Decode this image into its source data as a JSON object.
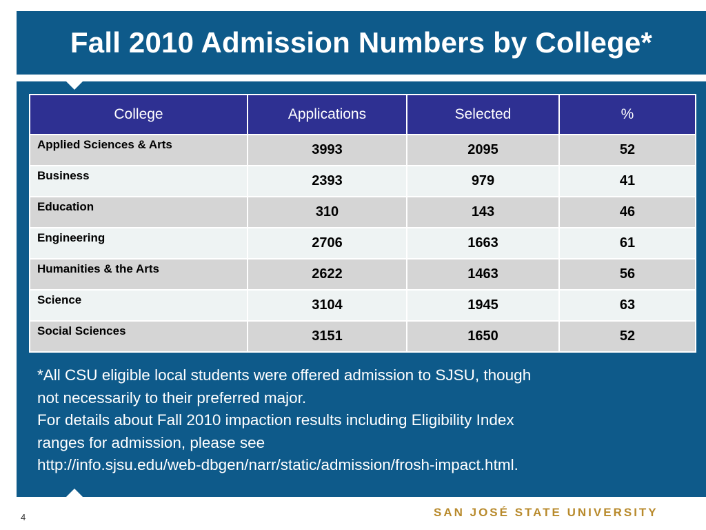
{
  "slide": {
    "title": "Fall 2010 Admission Numbers by College*",
    "page_number": "4",
    "logo_text": "SAN JOSÉ STATE UNIVERSITY"
  },
  "table": {
    "headers": [
      "College",
      "Applications",
      "Selected",
      "%"
    ],
    "rows": [
      {
        "college": "Applied Sciences & Arts",
        "applications": "3993",
        "selected": "2095",
        "percent": "52"
      },
      {
        "college": "Business",
        "applications": "2393",
        "selected": "979",
        "percent": "41"
      },
      {
        "college": "Education",
        "applications": "310",
        "selected": "143",
        "percent": "46"
      },
      {
        "college": "Engineering",
        "applications": "2706",
        "selected": "1663",
        "percent": "61"
      },
      {
        "college": "Humanities & the Arts",
        "applications": "2622",
        "selected": "1463",
        "percent": "56"
      },
      {
        "college": "Science",
        "applications": "3104",
        "selected": "1945",
        "percent": "63"
      },
      {
        "college": "Social Sciences",
        "applications": "3151",
        "selected": "1650",
        "percent": "52"
      }
    ]
  },
  "footnote": {
    "lines": [
      "*All CSU eligible local students were offered admission to SJSU, though",
      "not necessarily to their preferred major.",
      "For details about Fall 2010 impaction results including Eligibility Index",
      "ranges for admission, please see",
      "http://info.sjsu.edu/web-dbgen/narr/static/admission/frosh-impact.html."
    ]
  },
  "colors": {
    "panel_blue": "#0e5a8a",
    "header_purple": "#2e3092",
    "row_gray": "#d5d5d5",
    "row_light": "#eef3f3",
    "logo_gold": "#b88a2c"
  }
}
